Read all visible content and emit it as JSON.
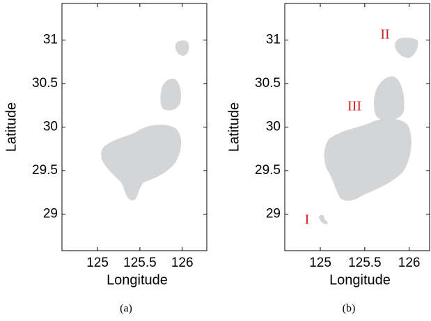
{
  "chart_data": [
    {
      "type": "map",
      "xlabel": "Longitude",
      "ylabel": "Latitude",
      "caption": "(a)",
      "xlim": [
        124.58,
        126.29
      ],
      "ylim": [
        28.58,
        31.42
      ],
      "xticks": [
        125,
        125.5,
        126
      ],
      "yticks": [
        29,
        29.5,
        30,
        30.5,
        31
      ]
    },
    {
      "type": "map",
      "xlabel": "Longitude",
      "ylabel": "Latitude",
      "caption": "(b)",
      "xlim": [
        124.6,
        126.23
      ],
      "ylim": [
        28.58,
        31.42
      ],
      "xticks": [
        125,
        125.5,
        126
      ],
      "yticks": [
        29,
        29.5,
        30,
        30.5,
        31
      ],
      "annotations": [
        "I",
        "II",
        "III"
      ]
    }
  ]
}
